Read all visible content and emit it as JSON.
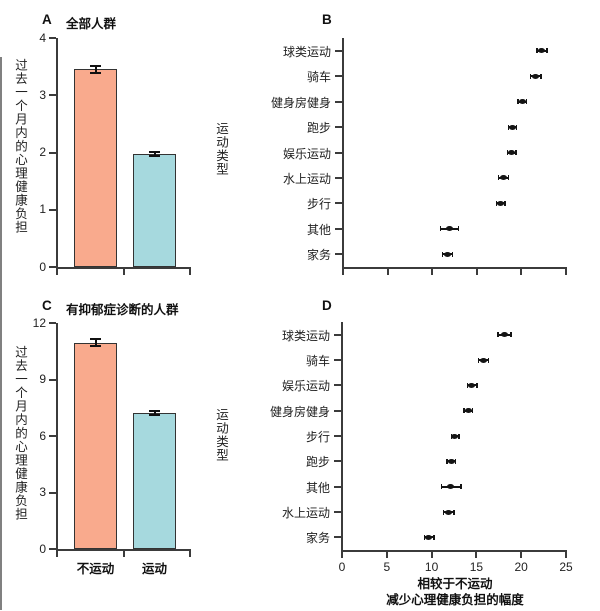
{
  "figure": {
    "background": "#ffffff",
    "axis_color": "#3b3b3b",
    "text_color": "#1f1f1f",
    "bar_color_no_exercise": "#f9aa8d",
    "bar_color_exercise": "#a6d9de",
    "bar_border_color": "#333333",
    "dot_color": "#141414"
  },
  "chart_data": [
    {
      "panel": "A",
      "type": "bar",
      "title": "全部人群",
      "ylabel": "过去一个月内的心理健康负担",
      "categories": [
        "不运动",
        "运动"
      ],
      "values": [
        3.45,
        1.97
      ],
      "errors": [
        0.06,
        0.03
      ],
      "yticks": [
        0,
        1,
        2,
        3,
        4
      ],
      "ylim": [
        0,
        4
      ],
      "x_category_labels_visible": false,
      "bar_colors": [
        "#f9aa8d",
        "#a6d9de"
      ],
      "grid": "off",
      "legend": "none"
    },
    {
      "panel": "B",
      "type": "scatter",
      "title": "",
      "ylabel": "运动类型",
      "categories": [
        "球类运动",
        "骑车",
        "健身房健身",
        "跑步",
        "娱乐运动",
        "水上运动",
        "步行",
        "其他",
        "家务"
      ],
      "values": [
        22.3,
        21.6,
        20.1,
        19.0,
        18.9,
        18.0,
        17.7,
        11.9,
        11.7
      ],
      "ci_low": [
        21.7,
        21.0,
        19.6,
        18.5,
        18.4,
        17.4,
        17.2,
        10.9,
        11.1
      ],
      "ci_high": [
        22.9,
        22.2,
        20.6,
        19.5,
        19.4,
        18.6,
        18.2,
        13.0,
        12.3
      ],
      "xticks": [
        0,
        5,
        10,
        15,
        20,
        25
      ],
      "xlim": [
        0,
        25
      ],
      "x_tick_labels_visible": false,
      "grid": "off",
      "legend": "none"
    },
    {
      "panel": "C",
      "type": "bar",
      "title": "有抑郁症诊断的人群",
      "ylabel": "过去一个月内的心理健康负担",
      "categories": [
        "不运动",
        "运动"
      ],
      "values": [
        10.95,
        7.2
      ],
      "errors": [
        0.18,
        0.08
      ],
      "yticks": [
        0,
        3,
        6,
        9,
        12
      ],
      "ylim": [
        0,
        12
      ],
      "x_category_labels_visible": true,
      "bar_colors": [
        "#f9aa8d",
        "#a6d9de"
      ],
      "grid": "off",
      "legend": "none"
    },
    {
      "panel": "D",
      "type": "scatter",
      "title": "",
      "ylabel": "运动类型",
      "xlabel": [
        "相较于不运动",
        "减少心理健康负担的幅度"
      ],
      "categories": [
        "球类运动",
        "骑车",
        "娱乐运动",
        "健身房健身",
        "步行",
        "跑步",
        "其他",
        "水上运动",
        "家务"
      ],
      "values": [
        18.1,
        15.8,
        14.5,
        14.1,
        12.6,
        12.2,
        12.1,
        11.9,
        9.7
      ],
      "ci_low": [
        17.4,
        15.2,
        14.0,
        13.6,
        12.2,
        11.7,
        11.1,
        11.3,
        9.2
      ],
      "ci_high": [
        18.9,
        16.4,
        15.1,
        14.6,
        13.1,
        12.7,
        13.3,
        12.5,
        10.3
      ],
      "xticks": [
        0,
        5,
        10,
        15,
        20,
        25
      ],
      "xlim": [
        0,
        25
      ],
      "x_tick_labels_visible": true,
      "grid": "off",
      "legend": "none"
    }
  ]
}
